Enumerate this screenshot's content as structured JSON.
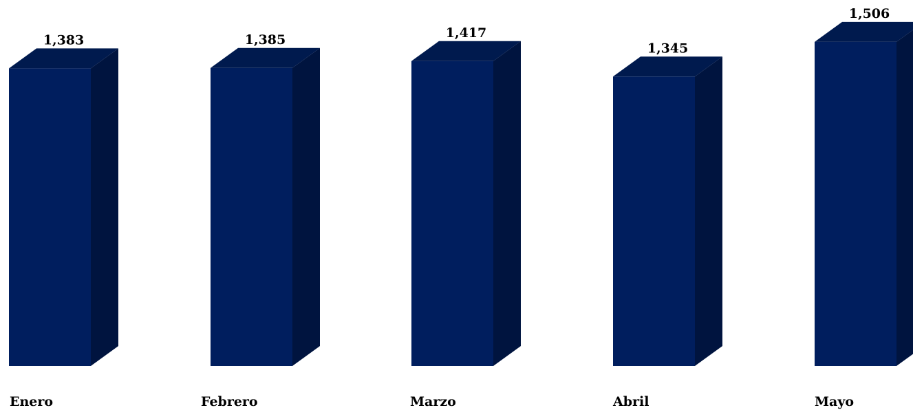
{
  "chart_data": {
    "type": "bar",
    "style": "3d-column",
    "categories": [
      "Enero",
      "Febrero",
      "Marzo",
      "Abril",
      "Mayo"
    ],
    "values": [
      1383,
      1385,
      1417,
      1345,
      1506
    ],
    "value_labels": [
      "1,383",
      "1,385",
      "1,417",
      "1,345",
      "1,506"
    ],
    "title": "",
    "xlabel": "",
    "ylabel": "",
    "grid": false,
    "legend": "none",
    "colors": {
      "front": "#001E5E",
      "side": "#00143F",
      "top": "#001A4E"
    }
  }
}
